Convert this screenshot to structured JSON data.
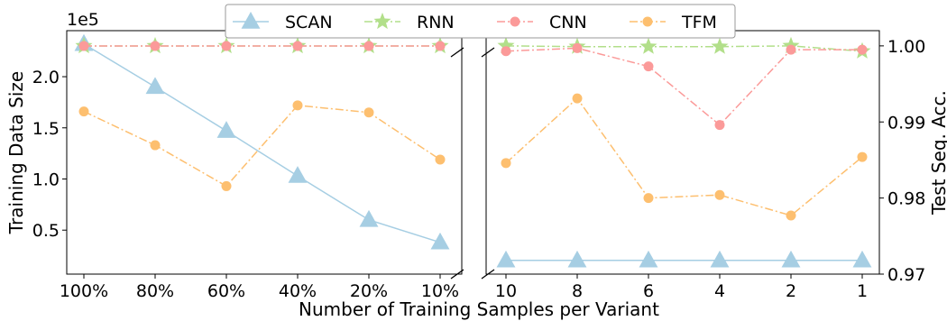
{
  "chart_data": {
    "type": "line",
    "xlabel": "Number of Training Samples per Variant",
    "colors": {
      "SCAN": "#a6cee3",
      "RNN": "#b2df8a",
      "CNN": "#fb9a99",
      "TFM": "#fdbf6f"
    },
    "legend": {
      "position": "top-center",
      "entries": [
        "SCAN",
        "RNN",
        "CNN",
        "TFM"
      ]
    },
    "panels": [
      {
        "name": "left",
        "categories": [
          "100%",
          "80%",
          "60%",
          "40%",
          "20%",
          "10%"
        ],
        "ylabel": "Training Data Size",
        "y_multiplier": "1e5",
        "ylim": [
          0.07,
          2.45
        ],
        "yticks": [
          "0.5",
          "1.0",
          "1.5",
          "2.0"
        ],
        "series": [
          {
            "name": "SCAN",
            "marker": "triangle",
            "values": [
              2.32,
              1.9,
              1.47,
              1.03,
              0.6,
              0.38
            ]
          },
          {
            "name": "RNN",
            "marker": "star",
            "values": [
              2.3,
              2.3,
              2.3,
              2.3,
              2.3,
              2.3
            ]
          },
          {
            "name": "CNN",
            "marker": "circle",
            "values": [
              2.3,
              2.3,
              2.3,
              2.3,
              2.3,
              2.3
            ]
          },
          {
            "name": "TFM",
            "marker": "circle",
            "values": [
              1.66,
              1.33,
              0.93,
              1.72,
              1.65,
              1.19
            ]
          }
        ]
      },
      {
        "name": "right",
        "categories": [
          "10",
          "8",
          "6",
          "4",
          "2",
          "1"
        ],
        "ylabel": "Test Seq. Acc.",
        "ylim": [
          0.97,
          1.002
        ],
        "yticks": [
          "0.97",
          "0.98",
          "0.99",
          "1.00"
        ],
        "series": [
          {
            "name": "SCAN",
            "marker": "triangle",
            "values": [
              0.9718,
              0.9718,
              0.9718,
              0.9718,
              0.9718,
              0.9718
            ]
          },
          {
            "name": "RNN",
            "marker": "star",
            "values": [
              1.0,
              0.9999,
              0.9999,
              0.9999,
              1.0,
              0.9993
            ]
          },
          {
            "name": "CNN",
            "marker": "circle",
            "values": [
              0.9993,
              0.9997,
              0.9973,
              0.9896,
              0.9995,
              0.9995
            ]
          },
          {
            "name": "TFM",
            "marker": "circle",
            "values": [
              0.9846,
              0.9931,
              0.98,
              0.9804,
              0.9777,
              0.9854
            ]
          }
        ]
      }
    ]
  }
}
